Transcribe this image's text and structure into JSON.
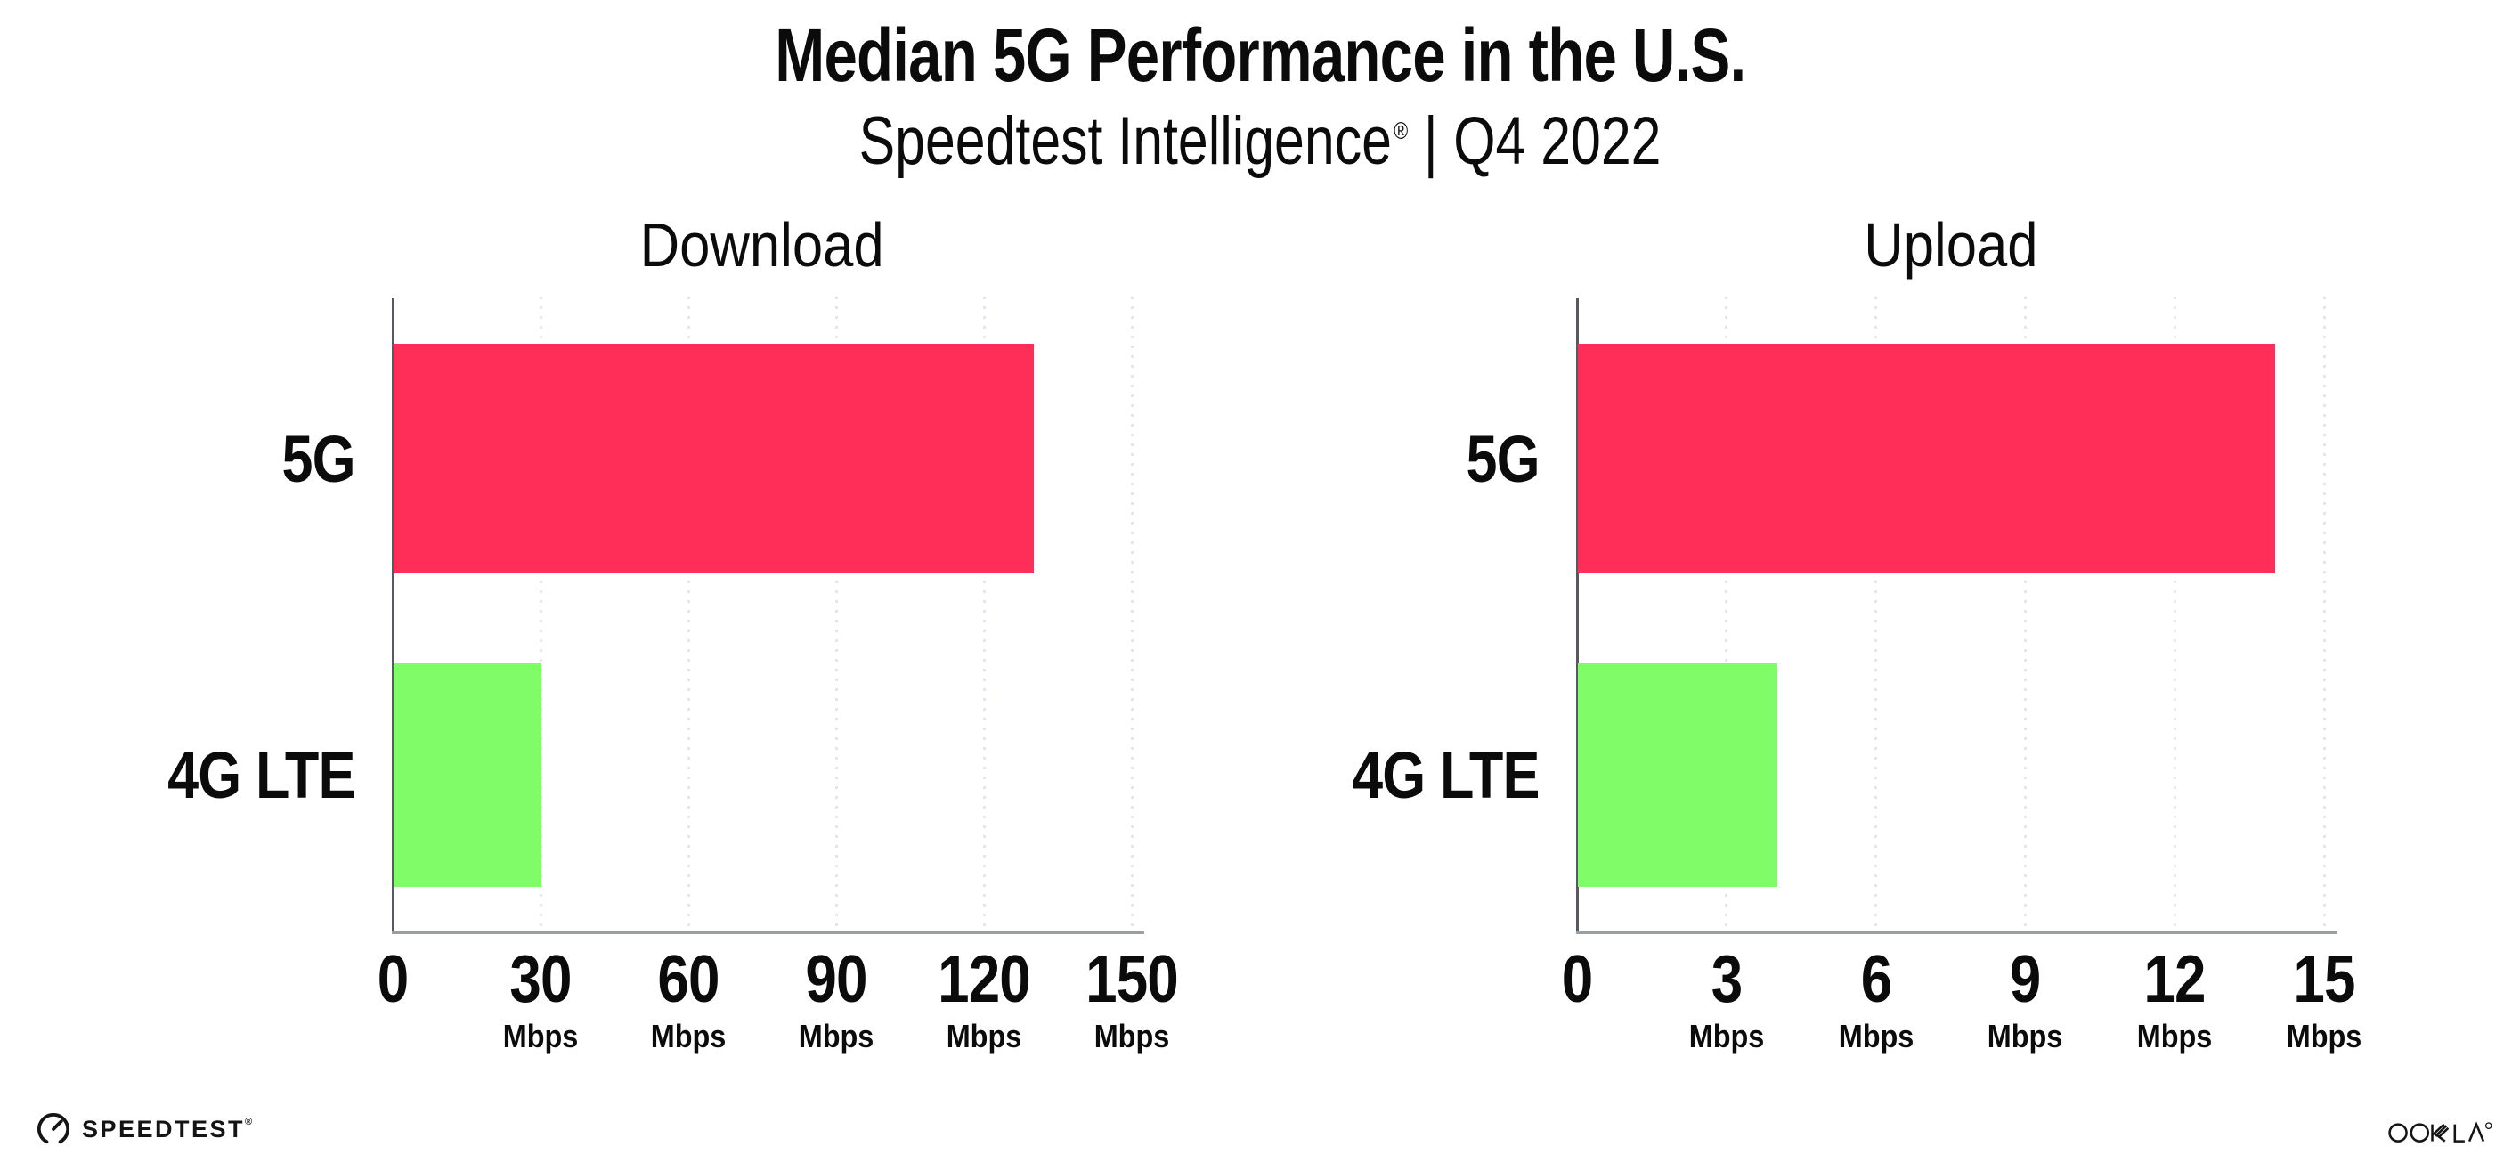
{
  "title": {
    "text": "Median 5G Performance in the U.S."
  },
  "subtitle": {
    "brand": "Speedtest Intelligence",
    "registered": "®",
    "separator": "|",
    "period": "Q4 2022"
  },
  "footer": {
    "speedtest_label": "SPEEDTEST",
    "speedtest_mark": "®",
    "ookla_label": "OOKLA"
  },
  "colors": {
    "bar_5g": "#FE2E59",
    "bar_4g_lte": "#80FC68",
    "gridline": "#E4E4EE",
    "y_axis": "#56595D",
    "x_axis": "#9B9EA2",
    "text": "#0B0B0B"
  },
  "chart_data": [
    {
      "type": "bar",
      "orientation": "horizontal",
      "title": "Download",
      "categories": [
        "5G",
        "4G LTE"
      ],
      "values": [
        130,
        30
      ],
      "unit": "Mbps",
      "xlabel": "",
      "ylabel": "",
      "xlim": [
        0,
        150
      ],
      "xticks": [
        0,
        30,
        60,
        90,
        120,
        150
      ],
      "grid": "vertical-dotted",
      "legend": "none",
      "bar_colors": [
        "#FE2E59",
        "#80FC68"
      ]
    },
    {
      "type": "bar",
      "orientation": "horizontal",
      "title": "Upload",
      "categories": [
        "5G",
        "4G LTE"
      ],
      "values": [
        14,
        4
      ],
      "unit": "Mbps",
      "xlabel": "",
      "ylabel": "",
      "xlim": [
        0,
        15
      ],
      "xticks": [
        0,
        3,
        6,
        9,
        12,
        15
      ],
      "grid": "vertical-dotted",
      "legend": "none",
      "bar_colors": [
        "#FE2E59",
        "#80FC68"
      ]
    }
  ]
}
